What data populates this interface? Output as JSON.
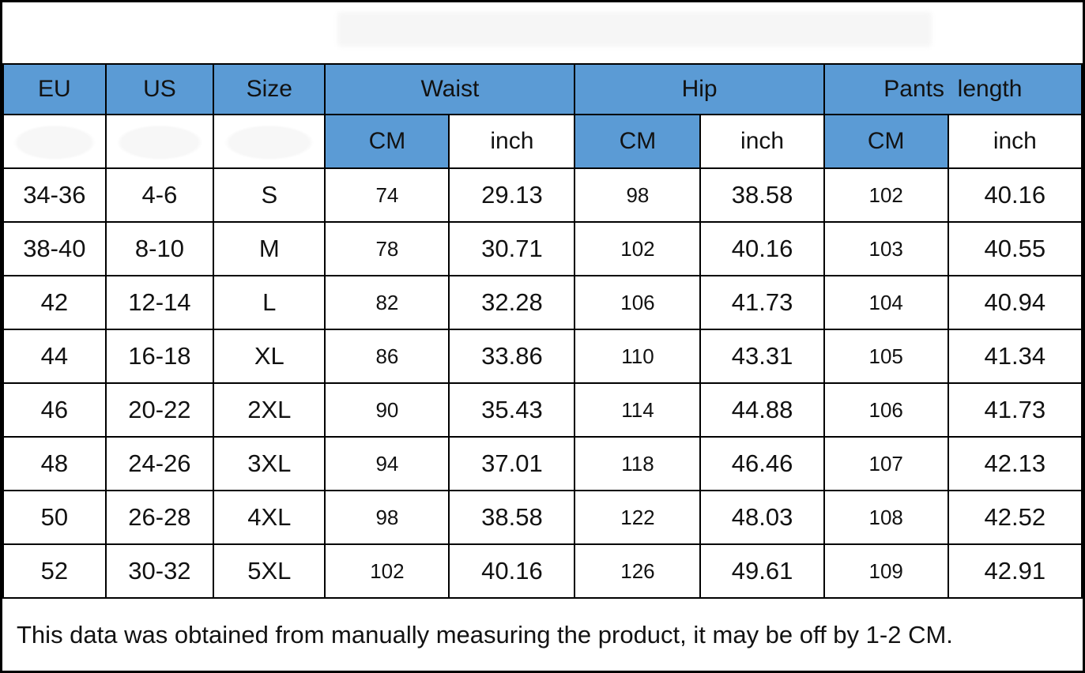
{
  "colors": {
    "header_blue": "#5b9bd5",
    "grid_border": "#000000",
    "text": "#121212",
    "background": "#ffffff"
  },
  "header": {
    "groups": [
      {
        "label": "EU",
        "span": 1
      },
      {
        "label": "US",
        "span": 1
      },
      {
        "label": "Size",
        "span": 1
      },
      {
        "label": "Waist",
        "span": 2
      },
      {
        "label": "Hip",
        "span": 2
      },
      {
        "label": "Pants  length",
        "span": 2
      }
    ],
    "sub_row": [
      "",
      "",
      "",
      "CM",
      "inch",
      "CM",
      "inch",
      "CM",
      "inch"
    ]
  },
  "chart_data": {
    "type": "table",
    "title": "",
    "columns": [
      "EU",
      "US",
      "Size",
      "Waist CM",
      "Waist inch",
      "Hip CM",
      "Hip inch",
      "Pants length CM",
      "Pants length inch"
    ],
    "rows": [
      [
        "34-36",
        "4-6",
        "S",
        "74",
        "29.13",
        "98",
        "38.58",
        "102",
        "40.16"
      ],
      [
        "38-40",
        "8-10",
        "M",
        "78",
        "30.71",
        "102",
        "40.16",
        "103",
        "40.55"
      ],
      [
        "42",
        "12-14",
        "L",
        "82",
        "32.28",
        "106",
        "41.73",
        "104",
        "40.94"
      ],
      [
        "44",
        "16-18",
        "XL",
        "86",
        "33.86",
        "110",
        "43.31",
        "105",
        "41.34"
      ],
      [
        "46",
        "20-22",
        "2XL",
        "90",
        "35.43",
        "114",
        "44.88",
        "106",
        "41.73"
      ],
      [
        "48",
        "24-26",
        "3XL",
        "94",
        "37.01",
        "118",
        "46.46",
        "107",
        "42.13"
      ],
      [
        "50",
        "26-28",
        "4XL",
        "98",
        "38.58",
        "122",
        "48.03",
        "108",
        "42.52"
      ],
      [
        "52",
        "30-32",
        "5XL",
        "102",
        "40.16",
        "126",
        "49.61",
        "109",
        "42.91"
      ]
    ],
    "footnote": "This data was obtained from manually measuring the product, it may be off by 1-2 CM."
  },
  "footer": {
    "note": "This data was obtained from manually measuring the product, it may be off by 1-2 CM."
  }
}
